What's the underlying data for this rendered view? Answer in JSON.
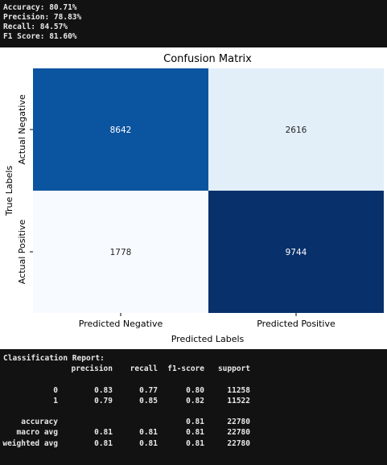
{
  "metrics": [
    "Accuracy: 80.71%",
    "Precision: 78.83%",
    "Recall: 84.57%",
    "F1 Score: 81.60%"
  ],
  "chart_data": {
    "type": "heatmap",
    "title": "Confusion Matrix",
    "xlabel": "Predicted Labels",
    "ylabel": "True Labels",
    "x_categories": [
      "Predicted Negative",
      "Predicted Positive"
    ],
    "y_categories": [
      "Actual Negative",
      "Actual Positive"
    ],
    "values": [
      [
        8642,
        2616
      ],
      [
        1778,
        9744
      ]
    ],
    "colormap": "Blues",
    "colors": {
      "low": "#f7fbff",
      "high": "#08306b"
    }
  },
  "report": {
    "title": "Classification Report:",
    "headers": [
      "precision",
      "recall",
      "f1-score",
      "support"
    ],
    "class_rows": [
      {
        "label": "0",
        "values": [
          "0.83",
          "0.77",
          "0.80",
          "11258"
        ]
      },
      {
        "label": "1",
        "values": [
          "0.79",
          "0.85",
          "0.82",
          "11522"
        ]
      }
    ],
    "summary_rows": [
      {
        "label": "accuracy",
        "values": [
          "",
          "",
          "0.81",
          "22780"
        ]
      },
      {
        "label": "macro avg",
        "values": [
          "0.81",
          "0.81",
          "0.81",
          "22780"
        ]
      },
      {
        "label": "weighted avg",
        "values": [
          "0.81",
          "0.81",
          "0.81",
          "22780"
        ]
      }
    ]
  }
}
